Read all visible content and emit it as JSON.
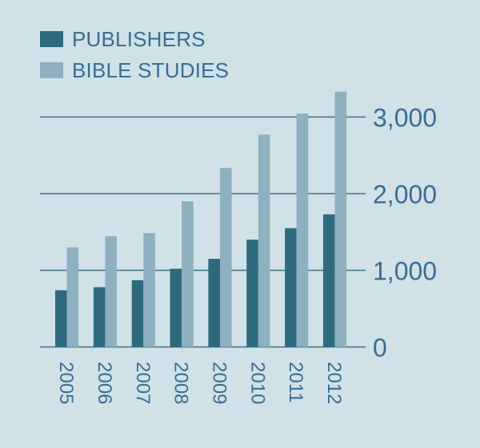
{
  "legend": {
    "items": [
      {
        "label": "PUBLISHERS",
        "color": "#2e6a7c"
      },
      {
        "label": "BIBLE STUDIES",
        "color": "#8fb0bf"
      }
    ]
  },
  "colors": {
    "background": "#d0e1e8",
    "text": "#3a6d93",
    "gridline": "#3f6f80",
    "publishers": "#2e6a7c",
    "bible_studies": "#8fb0bf"
  },
  "chart_data": {
    "type": "bar",
    "title": "",
    "xlabel": "",
    "ylabel": "",
    "categories": [
      "2005",
      "2006",
      "2007",
      "2008",
      "2009",
      "2010",
      "2011",
      "2012"
    ],
    "series": [
      {
        "name": "PUBLISHERS",
        "values": [
          740,
          780,
          870,
          1020,
          1150,
          1400,
          1550,
          1730
        ]
      },
      {
        "name": "BIBLE STUDIES",
        "values": [
          1300,
          1445,
          1485,
          1900,
          2335,
          2770,
          3045,
          3330
        ]
      }
    ],
    "ylim": [
      0,
      3400
    ],
    "yticks": [
      0,
      1000,
      2000,
      3000
    ],
    "ytick_labels": [
      "0",
      "1,000",
      "2,000",
      "3,000"
    ],
    "y_axis_position": "right",
    "x_tick_rotation": 90,
    "grid": true,
    "legend_position": "top-left"
  }
}
